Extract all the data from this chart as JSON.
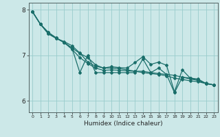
{
  "xlabel": "Humidex (Indice chaleur)",
  "background_color": "#cce8e8",
  "grid_color": "#99cccc",
  "line_color": "#1a6e6a",
  "xlim": [
    -0.5,
    23.5
  ],
  "ylim": [
    5.75,
    8.15
  ],
  "yticks": [
    6,
    7,
    8
  ],
  "xticks": [
    0,
    1,
    2,
    3,
    4,
    5,
    6,
    7,
    8,
    9,
    10,
    11,
    12,
    13,
    14,
    15,
    16,
    17,
    18,
    19,
    20,
    21,
    22,
    23
  ],
  "series": [
    [
      7.95,
      7.68,
      7.47,
      7.37,
      7.3,
      7.21,
      7.05,
      6.85,
      6.76,
      6.72,
      6.72,
      6.71,
      6.68,
      6.65,
      6.62,
      6.6,
      6.58,
      6.55,
      6.5,
      6.47,
      6.44,
      6.42,
      6.38,
      6.35
    ],
    [
      7.95,
      7.68,
      7.5,
      7.38,
      7.28,
      7.16,
      7.04,
      6.95,
      6.79,
      6.72,
      6.75,
      6.73,
      6.72,
      6.84,
      6.97,
      6.8,
      6.85,
      6.78,
      6.2,
      6.68,
      6.5,
      6.45,
      6.38,
      6.35
    ],
    [
      7.95,
      7.68,
      7.5,
      7.38,
      7.28,
      7.16,
      6.62,
      7.0,
      6.62,
      6.62,
      6.62,
      6.62,
      6.62,
      6.62,
      6.92,
      6.62,
      6.72,
      6.58,
      6.18,
      6.52,
      6.5,
      6.48,
      6.38,
      6.35
    ],
    [
      7.95,
      7.68,
      7.47,
      7.37,
      7.28,
      7.13,
      6.95,
      6.82,
      6.72,
      6.67,
      6.68,
      6.67,
      6.66,
      6.65,
      6.65,
      6.62,
      6.6,
      6.58,
      6.56,
      6.52,
      6.48,
      6.45,
      6.39,
      6.35
    ]
  ]
}
